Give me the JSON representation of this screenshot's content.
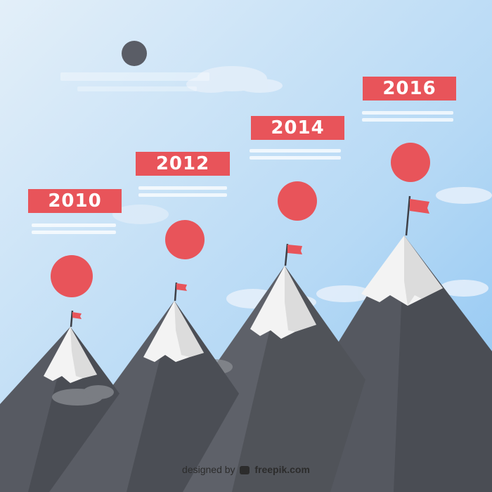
{
  "milestones": [
    {
      "year": "2010",
      "color": "#e8545a"
    },
    {
      "year": "2012",
      "color": "#e8545a"
    },
    {
      "year": "2014",
      "color": "#e8545a"
    },
    {
      "year": "2016",
      "color": "#e8545a"
    }
  ],
  "credit": {
    "prefix": "designed by",
    "brand": "freepik.com"
  },
  "colors": {
    "sky_top": "#d6e9f7",
    "sky_bottom": "#8fc7f2",
    "mountain_dark": "#4c4f56",
    "mountain_mid": "#5e6169",
    "snow": "#f2f2f2",
    "snow_shadow": "#dcdcdc",
    "accent": "#e8545a",
    "cloud": "#eaf3fb"
  }
}
